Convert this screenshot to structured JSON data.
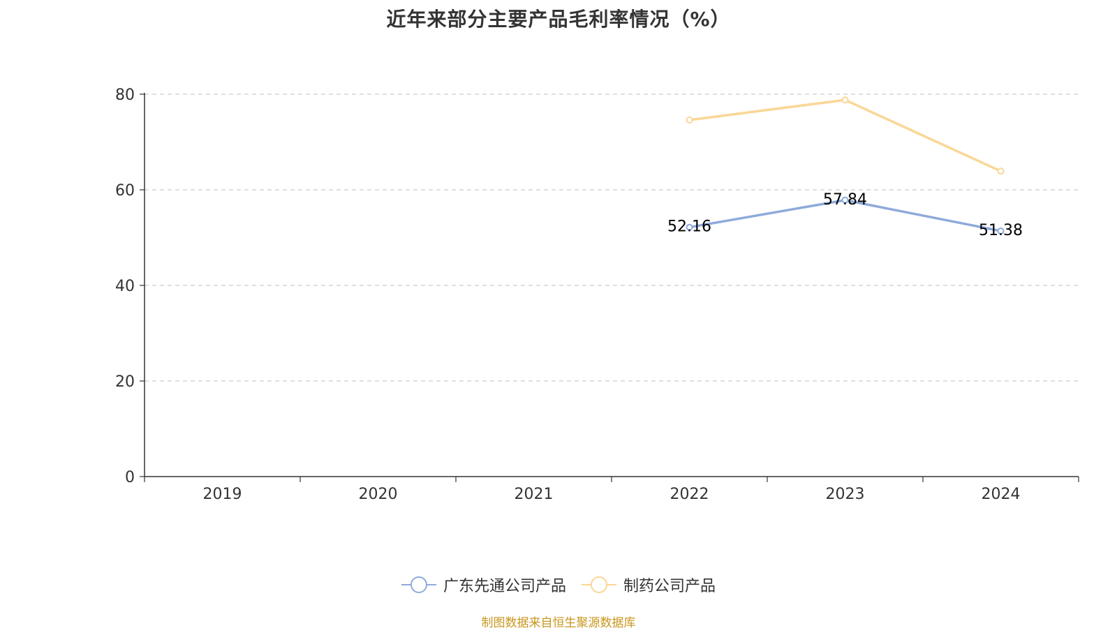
{
  "title": "近年来部分主要产品毛利率情况（%）",
  "source": "制图数据来自恒生聚源数据库",
  "chart_data": {
    "type": "line",
    "title": "近年来部分主要产品毛利率情况（%）",
    "categories": [
      "2019",
      "2020",
      "2021",
      "2022",
      "2023",
      "2024"
    ],
    "ylim": [
      0,
      80
    ],
    "yticks": [
      0,
      20,
      40,
      60,
      80
    ],
    "grid": true,
    "legend_position": "bottom",
    "series": [
      {
        "name": "广东先通公司产品",
        "color": "#8eaadb",
        "values": [
          null,
          null,
          null,
          52.16,
          57.84,
          51.38
        ],
        "labels": [
          "",
          "",
          "",
          "52.16",
          "57.84",
          "51.38"
        ]
      },
      {
        "name": "制药公司产品",
        "color": "#fad797",
        "values": [
          null,
          null,
          null,
          74.6,
          78.8,
          63.9
        ],
        "labels": [
          "",
          "",
          "",
          "",
          "",
          ""
        ]
      }
    ]
  }
}
